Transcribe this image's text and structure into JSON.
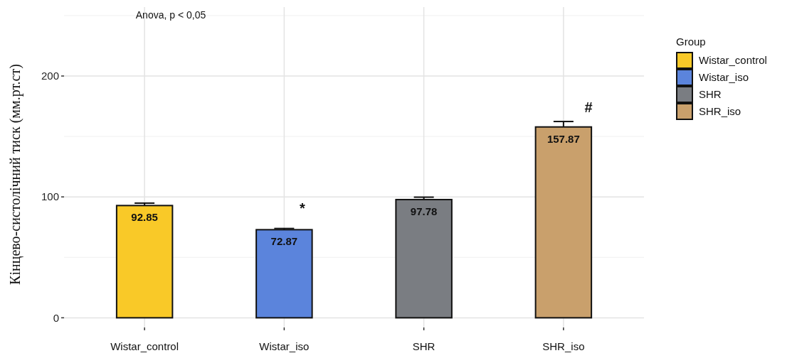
{
  "chart_data": {
    "type": "bar",
    "ylabel": "Кінцево-систолічний тиск (мм.рт.ст)",
    "legend_title": "Group",
    "categories": [
      "Wistar_control",
      "Wistar_iso",
      "SHR",
      "SHR_iso"
    ],
    "series": [
      {
        "name": "Wistar_control",
        "color": "#f9c928",
        "values": [
          92.85,
          null,
          null,
          null
        ],
        "errors": [
          2,
          null,
          null,
          null
        ]
      },
      {
        "name": "Wistar_iso",
        "color": "#5b84dc",
        "values": [
          null,
          72.87,
          null,
          null
        ],
        "errors": [
          null,
          1,
          null,
          null
        ]
      },
      {
        "name": "SHR",
        "color": "#7a7d82",
        "values": [
          null,
          null,
          97.78,
          null
        ],
        "errors": [
          null,
          null,
          2,
          null
        ]
      },
      {
        "name": "SHR_iso",
        "color": "#c9a06c",
        "values": [
          null,
          null,
          null,
          157.87
        ],
        "errors": [
          null,
          null,
          null,
          4.5
        ]
      }
    ],
    "ylim": [
      -8,
      257
    ],
    "yticks": [
      0,
      {
        "value": 50,
        "label": null
      },
      100,
      {
        "value": 150,
        "label": null
      },
      200,
      {
        "value": 250,
        "label": null
      }
    ],
    "grid": true,
    "legend": "right",
    "data_labels": true,
    "annotations": [
      "Anova, p < 0,05",
      "*",
      "#"
    ]
  }
}
